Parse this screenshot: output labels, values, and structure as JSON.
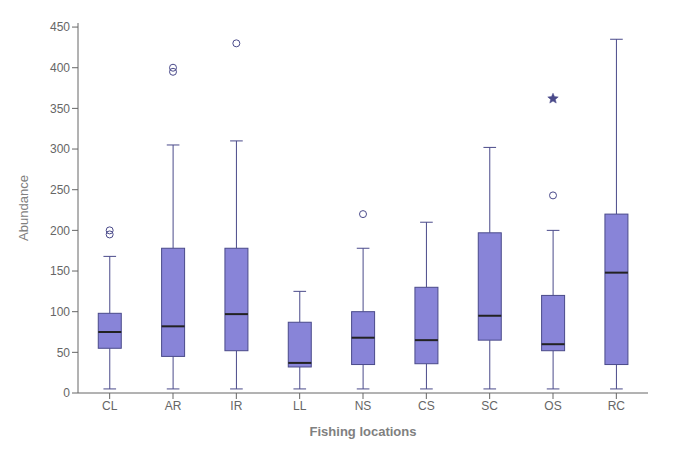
{
  "chart_data": {
    "type": "box",
    "categories": [
      "CL",
      "AR",
      "IR",
      "LL",
      "NS",
      "CS",
      "SC",
      "OS",
      "RC"
    ],
    "xlabel": "Fishing locations",
    "ylabel": "Abundance",
    "ylim": [
      0,
      455
    ],
    "yticks": [
      0,
      50,
      100,
      150,
      200,
      250,
      300,
      350,
      400,
      450
    ],
    "grid": false,
    "boxes": [
      {
        "q1": 55,
        "median": 75,
        "q3": 98,
        "whislo": 5,
        "whishi": 168,
        "outliers": [
          200,
          195
        ],
        "extremes": []
      },
      {
        "q1": 45,
        "median": 82,
        "q3": 178,
        "whislo": 5,
        "whishi": 305,
        "outliers": [
          395,
          400
        ],
        "extremes": []
      },
      {
        "q1": 52,
        "median": 97,
        "q3": 178,
        "whislo": 5,
        "whishi": 310,
        "outliers": [
          430
        ],
        "extremes": []
      },
      {
        "q1": 32,
        "median": 37,
        "q3": 87,
        "whislo": 5,
        "whishi": 125,
        "outliers": [],
        "extremes": []
      },
      {
        "q1": 35,
        "median": 68,
        "q3": 100,
        "whislo": 5,
        "whishi": 178,
        "outliers": [
          220
        ],
        "extremes": []
      },
      {
        "q1": 36,
        "median": 65,
        "q3": 130,
        "whislo": 5,
        "whishi": 210,
        "outliers": [],
        "extremes": []
      },
      {
        "q1": 65,
        "median": 95,
        "q3": 197,
        "whislo": 5,
        "whishi": 302,
        "outliers": [],
        "extremes": []
      },
      {
        "q1": 52,
        "median": 60,
        "q3": 120,
        "whislo": 5,
        "whishi": 200,
        "outliers": [
          243
        ],
        "extremes": [
          362
        ]
      },
      {
        "q1": 35,
        "median": 148,
        "q3": 220,
        "whislo": 5,
        "whishi": 435,
        "outliers": [],
        "extremes": []
      }
    ]
  }
}
